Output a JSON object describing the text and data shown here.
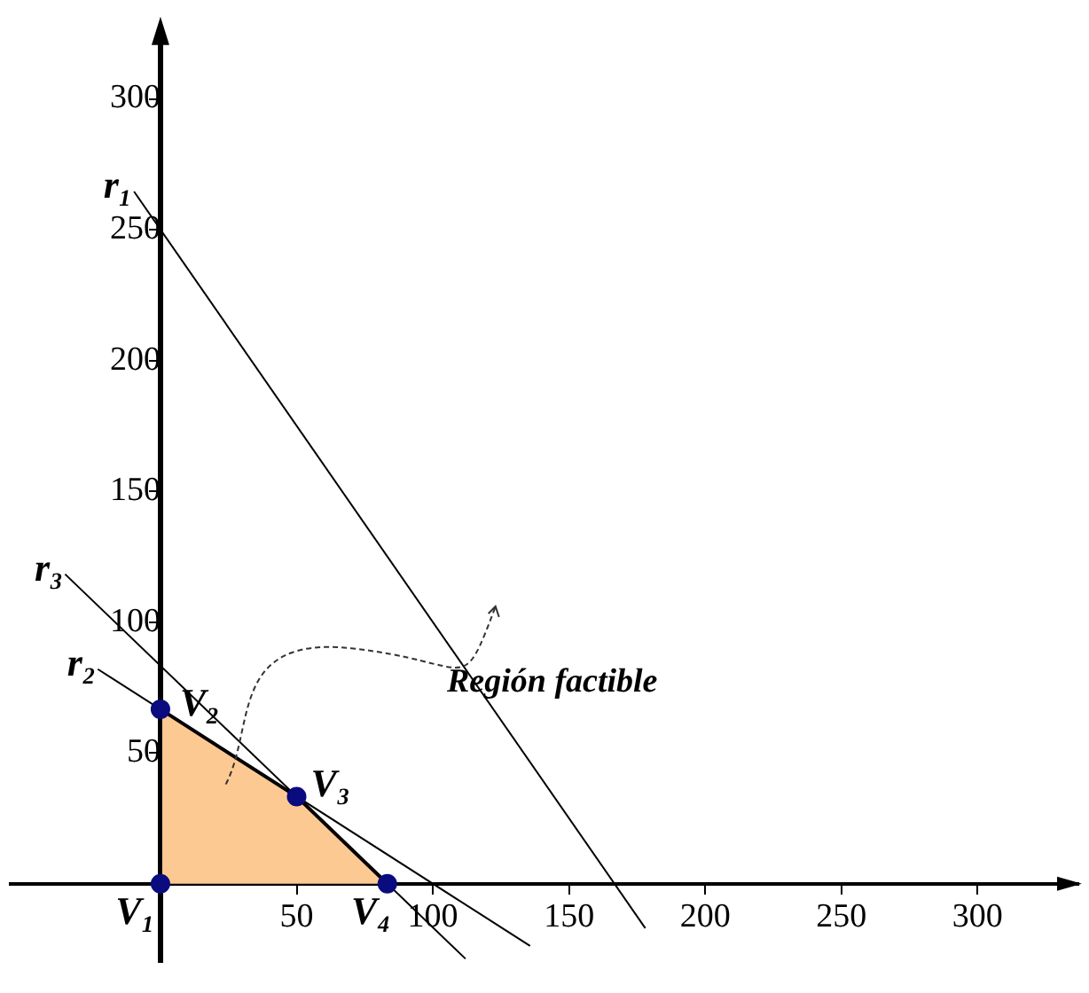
{
  "chart_data": {
    "type": "line",
    "xlim": [
      -55,
      337
    ],
    "ylim": [
      -30,
      326
    ],
    "xticks": [
      50,
      100,
      150,
      200,
      250,
      300
    ],
    "yticks": [
      50,
      100,
      150,
      200,
      250,
      300
    ],
    "grid": false,
    "legend": false,
    "marker": "none",
    "line_style": "solid",
    "series": [
      {
        "name": "r₁",
        "color": "#000000",
        "x": [
          -9.7,
          178
        ],
        "values": [
          264.6,
          -17
        ]
      },
      {
        "name": "r₂",
        "color": "#000000",
        "x": [
          -23,
          135.7
        ],
        "values": [
          82,
          -23.8
        ]
      },
      {
        "name": "r₃",
        "color": "#000000",
        "x": [
          -35,
          112
        ],
        "values": [
          118.3,
          -28.7
        ]
      },
      {
        "type": "area",
        "color": "#fdc993",
        "x": [
          0,
          0,
          50,
          83.3
        ],
        "values": [
          0,
          66.7,
          33.3,
          0
        ]
      },
      {
        "type": "scatter",
        "color": "#0b0b80",
        "marker": "circle",
        "x": [
          0,
          0,
          50,
          83.3
        ],
        "values": [
          0,
          66.7,
          33.3,
          0
        ]
      }
    ],
    "annotations": [
      {
        "text": "V₁",
        "x": 0,
        "y": 0
      },
      {
        "text": "V₂",
        "x": 0,
        "y": 66.7
      },
      {
        "text": "V₃",
        "x": 50,
        "y": 33.3
      },
      {
        "text": "V₄",
        "x": 83.3,
        "y": 0
      },
      "Región factible"
    ]
  }
}
